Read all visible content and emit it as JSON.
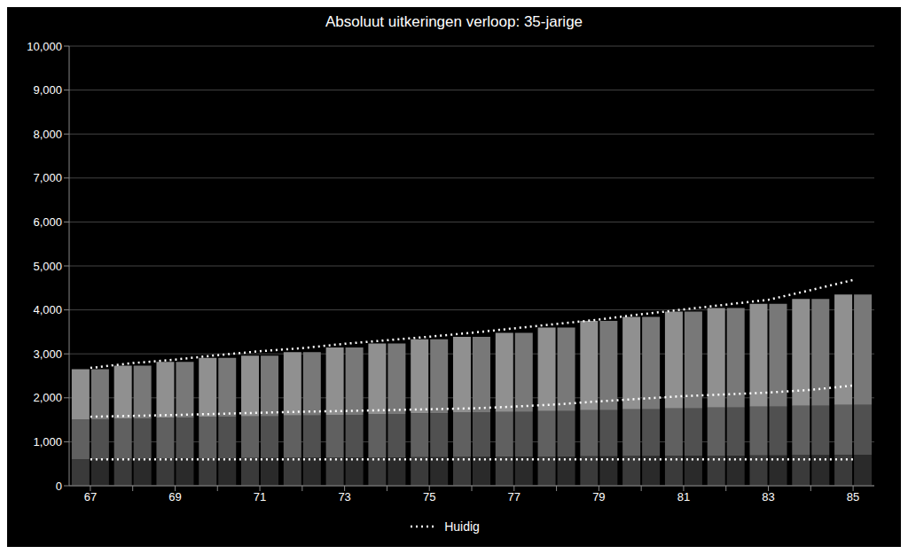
{
  "chart_data": {
    "type": "bar",
    "title": "Absoluut uitkeringen verloop: 35-jarige",
    "stacked": true,
    "grid": true,
    "legend": "bottom",
    "categories": [
      "67",
      null,
      "69",
      null,
      "71",
      null,
      "73",
      null,
      "75",
      null,
      "77",
      null,
      "79",
      null,
      "81",
      null,
      "83",
      null,
      "85"
    ],
    "ylim": [
      0,
      10000
    ],
    "yticks": [
      0,
      {
        "value": 1000,
        "label": "1,000"
      },
      {
        "value": 2000,
        "label": "2,000"
      },
      {
        "value": 3000,
        "label": "3,000"
      },
      {
        "value": 4000,
        "label": "4,000"
      },
      {
        "value": 5000,
        "label": "5,000"
      },
      {
        "value": 6000,
        "label": "6,000"
      },
      {
        "value": 7000,
        "label": "7,000"
      },
      {
        "value": 8000,
        "label": "8,000"
      },
      {
        "value": 9000,
        "label": "9,000"
      },
      {
        "value": 10000,
        "label": "10,000"
      }
    ],
    "series": [
      {
        "type": "bar",
        "color": "#3a3a3a",
        "values": [
          600,
          610,
          620,
          625,
          630,
          635,
          640,
          645,
          650,
          655,
          660,
          665,
          670,
          675,
          680,
          685,
          690,
          695,
          700
        ]
      },
      {
        "type": "bar",
        "color": "#606060",
        "values": [
          900,
          910,
          920,
          935,
          950,
          965,
          975,
          990,
          1000,
          1010,
          1020,
          1035,
          1050,
          1065,
          1080,
          1095,
          1110,
          1125,
          1140
        ]
      },
      {
        "type": "bar",
        "color": "#909090",
        "values": [
          1150,
          1210,
          1280,
          1350,
          1380,
          1440,
          1530,
          1600,
          1680,
          1720,
          1800,
          1900,
          2030,
          2100,
          2200,
          2260,
          2340,
          2430,
          2510
        ]
      },
      {
        "type": "bar",
        "color": "#2a2a2a",
        "values": [
          600,
          610,
          620,
          625,
          630,
          635,
          640,
          645,
          650,
          655,
          660,
          665,
          670,
          675,
          680,
          685,
          690,
          695,
          700
        ]
      },
      {
        "type": "bar",
        "color": "#505050",
        "values": [
          900,
          910,
          920,
          935,
          950,
          965,
          975,
          990,
          1000,
          1010,
          1020,
          1035,
          1050,
          1065,
          1080,
          1095,
          1110,
          1125,
          1140
        ]
      },
      {
        "type": "bar",
        "color": "#787878",
        "values": [
          1150,
          1210,
          1280,
          1350,
          1380,
          1440,
          1530,
          1600,
          1680,
          1720,
          1800,
          1900,
          2030,
          2100,
          2200,
          2260,
          2340,
          2430,
          2510
        ]
      },
      {
        "type": "line",
        "name": "Huidig",
        "color": "#ffffff",
        "line_style": "dotted",
        "values": [
          600,
          600,
          600,
          600,
          600,
          600,
          600,
          600,
          600,
          600,
          600,
          600,
          600,
          600,
          600,
          600,
          600,
          600,
          600
        ]
      },
      {
        "type": "line",
        "color": "#ffffff",
        "line_style": "dotted",
        "values": [
          1570,
          1590,
          1610,
          1635,
          1660,
          1685,
          1700,
          1720,
          1740,
          1760,
          1800,
          1850,
          1920,
          1980,
          2040,
          2080,
          2120,
          2180,
          2280
        ]
      },
      {
        "type": "line",
        "color": "#ffffff",
        "line_style": "dotted",
        "values": [
          2680,
          2790,
          2870,
          2970,
          3060,
          3130,
          3230,
          3310,
          3390,
          3480,
          3580,
          3680,
          3780,
          3900,
          4010,
          4120,
          4230,
          4450,
          4680
        ]
      }
    ]
  }
}
